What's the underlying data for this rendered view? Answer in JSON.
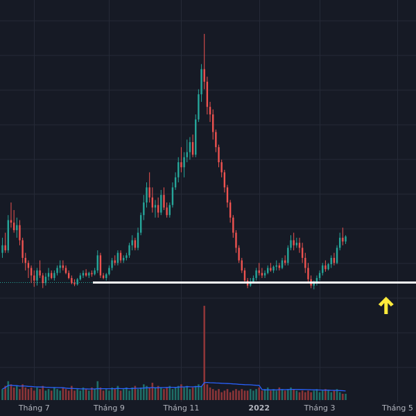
{
  "chart_data": {
    "type": "candlestick",
    "title": "",
    "xlabel": "",
    "ylabel": "",
    "x_ticks": [
      {
        "label": "Tháng 7",
        "bar": 11
      },
      {
        "label": "Tháng 9",
        "bar": 37
      },
      {
        "label": "Tháng 11",
        "bar": 62
      },
      {
        "label": "2022",
        "bar": 89
      },
      {
        "label": "Tháng 3",
        "bar": 110
      },
      {
        "label": "Tháng 5",
        "bar": 137
      }
    ],
    "x_ticks_bold": [
      "2022"
    ],
    "grid": true,
    "colors": {
      "background": "#161a25",
      "grid": "#252a37",
      "up": "#26a69a",
      "down": "#ef5350",
      "volume_up": "#1f6e67",
      "volume_down": "#8c3538",
      "volume_ma": "#2962ff",
      "support_line": "#ffffff",
      "arrow": "#ffeb3b",
      "tick_text": "#b2b5be"
    },
    "support_level": 18.2,
    "arrow_bar": 133,
    "price_ylim": [
      12,
      120
    ],
    "ohlc_series": [
      [
        30.0,
        36.0,
        28.0,
        33.0
      ],
      [
        33.0,
        38.0,
        30.0,
        31.0
      ],
      [
        31.0,
        45.0,
        30.0,
        43.0
      ],
      [
        43.0,
        50.0,
        40.0,
        42.0
      ],
      [
        42.0,
        47.0,
        38.0,
        39.0
      ],
      [
        39.0,
        44.0,
        36.0,
        41.0
      ],
      [
        41.0,
        43.0,
        33.0,
        35.0
      ],
      [
        35.0,
        36.0,
        26.0,
        28.0
      ],
      [
        28.0,
        30.0,
        23.0,
        26.0
      ],
      [
        26.0,
        27.0,
        20.0,
        24.0
      ],
      [
        24.0,
        25.0,
        18.0,
        21.0
      ],
      [
        21.0,
        23.0,
        16.5,
        19.0
      ],
      [
        19.0,
        24.0,
        17.0,
        23.0
      ],
      [
        23.0,
        27.0,
        20.0,
        21.0
      ],
      [
        21.0,
        22.0,
        16.0,
        18.0
      ],
      [
        18.0,
        22.0,
        17.0,
        20.5
      ],
      [
        20.5,
        24.0,
        19.0,
        22.0
      ],
      [
        22.0,
        23.0,
        19.5,
        20.0
      ],
      [
        20.0,
        23.0,
        19.0,
        22.0
      ],
      [
        22.0,
        25.0,
        21.0,
        24.0
      ],
      [
        24.0,
        27.0,
        22.0,
        25.0
      ],
      [
        25.0,
        27.0,
        23.0,
        24.0
      ],
      [
        24.0,
        25.0,
        21.5,
        22.0
      ],
      [
        22.0,
        23.0,
        19.5,
        20.0
      ],
      [
        20.0,
        21.0,
        17.5,
        18.0
      ],
      [
        18.0,
        19.5,
        16.8,
        17.5
      ],
      [
        17.5,
        20.0,
        17.0,
        19.5
      ],
      [
        19.5,
        22.0,
        19.0,
        21.0
      ],
      [
        21.0,
        23.0,
        20.0,
        22.0
      ],
      [
        22.0,
        23.5,
        20.5,
        21.0
      ],
      [
        21.0,
        22.5,
        20.0,
        22.0
      ],
      [
        22.0,
        23.0,
        20.5,
        21.5
      ],
      [
        21.5,
        24.0,
        21.0,
        23.0
      ],
      [
        23.0,
        31.0,
        22.0,
        29.0
      ],
      [
        29.0,
        30.0,
        20.0,
        21.0
      ],
      [
        21.0,
        22.0,
        19.5,
        20.0
      ],
      [
        20.0,
        22.0,
        19.0,
        21.5
      ],
      [
        21.5,
        25.0,
        21.0,
        24.0
      ],
      [
        24.0,
        28.0,
        23.0,
        27.0
      ],
      [
        27.0,
        29.0,
        25.0,
        26.0
      ],
      [
        26.0,
        31.0,
        25.0,
        30.0
      ],
      [
        30.0,
        31.0,
        26.0,
        27.0
      ],
      [
        27.0,
        29.0,
        26.0,
        28.0
      ],
      [
        28.0,
        30.0,
        27.0,
        29.0
      ],
      [
        29.0,
        34.0,
        28.0,
        33.0
      ],
      [
        33.0,
        37.0,
        31.0,
        35.0
      ],
      [
        35.0,
        36.0,
        31.0,
        32.0
      ],
      [
        32.0,
        40.0,
        31.0,
        38.0
      ],
      [
        38.0,
        46.0,
        37.0,
        45.0
      ],
      [
        45.0,
        53.0,
        43.0,
        50.0
      ],
      [
        50.0,
        58.0,
        48.0,
        56.0
      ],
      [
        56.0,
        62.0,
        50.0,
        52.0
      ],
      [
        52.0,
        56.0,
        46.0,
        48.0
      ],
      [
        48.0,
        51.0,
        44.0,
        49.0
      ],
      [
        49.0,
        52.0,
        44.0,
        46.0
      ],
      [
        46.0,
        55.0,
        45.0,
        53.0
      ],
      [
        53.0,
        56.0,
        47.0,
        48.0
      ],
      [
        48.0,
        50.0,
        44.0,
        45.0
      ],
      [
        45.0,
        50.0,
        44.0,
        49.0
      ],
      [
        49.0,
        58.0,
        48.0,
        56.0
      ],
      [
        56.0,
        62.0,
        55.0,
        60.0
      ],
      [
        60.0,
        68.0,
        58.0,
        66.0
      ],
      [
        66.0,
        72.0,
        62.0,
        64.0
      ],
      [
        64.0,
        70.0,
        60.0,
        68.0
      ],
      [
        68.0,
        75.0,
        66.0,
        70.0
      ],
      [
        70.0,
        76.0,
        67.0,
        74.0
      ],
      [
        74.0,
        77.0,
        68.0,
        69.0
      ],
      [
        69.0,
        85.0,
        68.0,
        83.0
      ],
      [
        83.0,
        95.0,
        82.0,
        93.0
      ],
      [
        93.0,
        105.0,
        90.0,
        103.0
      ],
      [
        103.0,
        117.0,
        95.0,
        98.0
      ],
      [
        98.0,
        100.0,
        85.0,
        88.0
      ],
      [
        88.0,
        90.0,
        82.0,
        85.0
      ],
      [
        85.0,
        87.0,
        75.0,
        78.0
      ],
      [
        78.0,
        79.0,
        70.0,
        72.0
      ],
      [
        72.0,
        73.0,
        64.0,
        66.0
      ],
      [
        66.0,
        67.0,
        60.0,
        62.0
      ],
      [
        62.0,
        63.0,
        54.0,
        56.0
      ],
      [
        56.0,
        57.0,
        48.0,
        50.0
      ],
      [
        50.0,
        51.0,
        42.0,
        44.0
      ],
      [
        44.0,
        45.0,
        36.0,
        38.0
      ],
      [
        38.0,
        39.0,
        30.0,
        32.0
      ],
      [
        32.0,
        33.0,
        26.0,
        27.0
      ],
      [
        27.0,
        28.0,
        22.0,
        23.0
      ],
      [
        23.0,
        24.0,
        18.5,
        19.0
      ],
      [
        19.0,
        20.0,
        16.0,
        17.0
      ],
      [
        17.0,
        20.0,
        16.5,
        18.5
      ],
      [
        18.5,
        21.0,
        18.0,
        20.0
      ],
      [
        20.0,
        24.0,
        19.0,
        23.0
      ],
      [
        23.0,
        26.0,
        21.0,
        22.0
      ],
      [
        22.0,
        24.0,
        20.0,
        21.0
      ],
      [
        21.0,
        23.0,
        20.0,
        22.0
      ],
      [
        22.0,
        25.0,
        21.5,
        24.0
      ],
      [
        24.0,
        26.0,
        22.5,
        23.0
      ],
      [
        23.0,
        25.0,
        22.0,
        24.5
      ],
      [
        24.5,
        27.0,
        23.0,
        25.0
      ],
      [
        25.0,
        26.0,
        23.0,
        24.0
      ],
      [
        24.0,
        28.0,
        23.5,
        27.0
      ],
      [
        27.0,
        29.0,
        25.0,
        26.0
      ],
      [
        26.0,
        33.0,
        25.0,
        32.0
      ],
      [
        32.0,
        37.0,
        31.0,
        35.0
      ],
      [
        35.0,
        38.0,
        31.0,
        33.0
      ],
      [
        33.0,
        36.0,
        32.0,
        34.0
      ],
      [
        34.0,
        36.0,
        30.0,
        32.0
      ],
      [
        32.0,
        34.0,
        26.0,
        28.0
      ],
      [
        28.0,
        30.0,
        22.0,
        24.0
      ],
      [
        24.0,
        26.0,
        18.0,
        19.5
      ],
      [
        19.5,
        21.0,
        16.0,
        17.0
      ],
      [
        17.0,
        19.0,
        15.5,
        18.5
      ],
      [
        18.5,
        21.0,
        17.0,
        20.0
      ],
      [
        20.0,
        23.0,
        19.0,
        22.0
      ],
      [
        22.0,
        26.0,
        21.0,
        25.0
      ],
      [
        25.0,
        27.0,
        22.5,
        23.5
      ],
      [
        23.5,
        26.0,
        23.0,
        25.5
      ],
      [
        25.5,
        29.0,
        24.0,
        28.0
      ],
      [
        28.0,
        30.0,
        25.0,
        26.0
      ],
      [
        26.0,
        33.0,
        25.5,
        32.0
      ],
      [
        32.0,
        38.0,
        31.0,
        36.0
      ],
      [
        36.0,
        40.0,
        33.0,
        34.5
      ],
      [
        34.5,
        37.0,
        33.5,
        36.5
      ]
    ],
    "volume_series": [
      3.5,
      4.5,
      6.0,
      5.0,
      4.0,
      4.5,
      3.5,
      5.0,
      4.0,
      3.5,
      4.0,
      3.0,
      4.0,
      3.5,
      4.5,
      3.0,
      3.5,
      3.0,
      4.0,
      3.5,
      3.0,
      4.0,
      3.5,
      3.0,
      4.5,
      3.0,
      3.5,
      3.0,
      4.0,
      3.5,
      3.0,
      4.0,
      3.5,
      6.0,
      4.0,
      3.0,
      3.5,
      3.0,
      4.0,
      3.5,
      4.5,
      3.0,
      3.5,
      4.0,
      3.0,
      4.0,
      4.5,
      3.5,
      4.0,
      5.0,
      4.5,
      4.0,
      5.5,
      4.0,
      4.5,
      4.0,
      3.5,
      4.0,
      4.5,
      3.5,
      4.0,
      4.5,
      5.0,
      4.0,
      4.5,
      3.5,
      4.0,
      4.5,
      5.0,
      4.5,
      30.0,
      5.0,
      4.0,
      3.5,
      3.0,
      3.5,
      2.5,
      3.0,
      3.5,
      2.5,
      3.0,
      3.5,
      3.0,
      3.5,
      3.0,
      3.0,
      3.5,
      3.0,
      3.5,
      4.0,
      3.0,
      3.5,
      4.0,
      3.0,
      3.5,
      3.0,
      4.0,
      3.5,
      3.0,
      3.5,
      4.0,
      3.5,
      3.0,
      2.5,
      3.0,
      2.5,
      3.0,
      2.5,
      3.0,
      3.5,
      2.5,
      3.0,
      3.5,
      3.0,
      2.5,
      3.0,
      3.5,
      2.5,
      2.0,
      2.0
    ],
    "volume_ylim": [
      0,
      32
    ],
    "volume_ma_period": 20
  }
}
